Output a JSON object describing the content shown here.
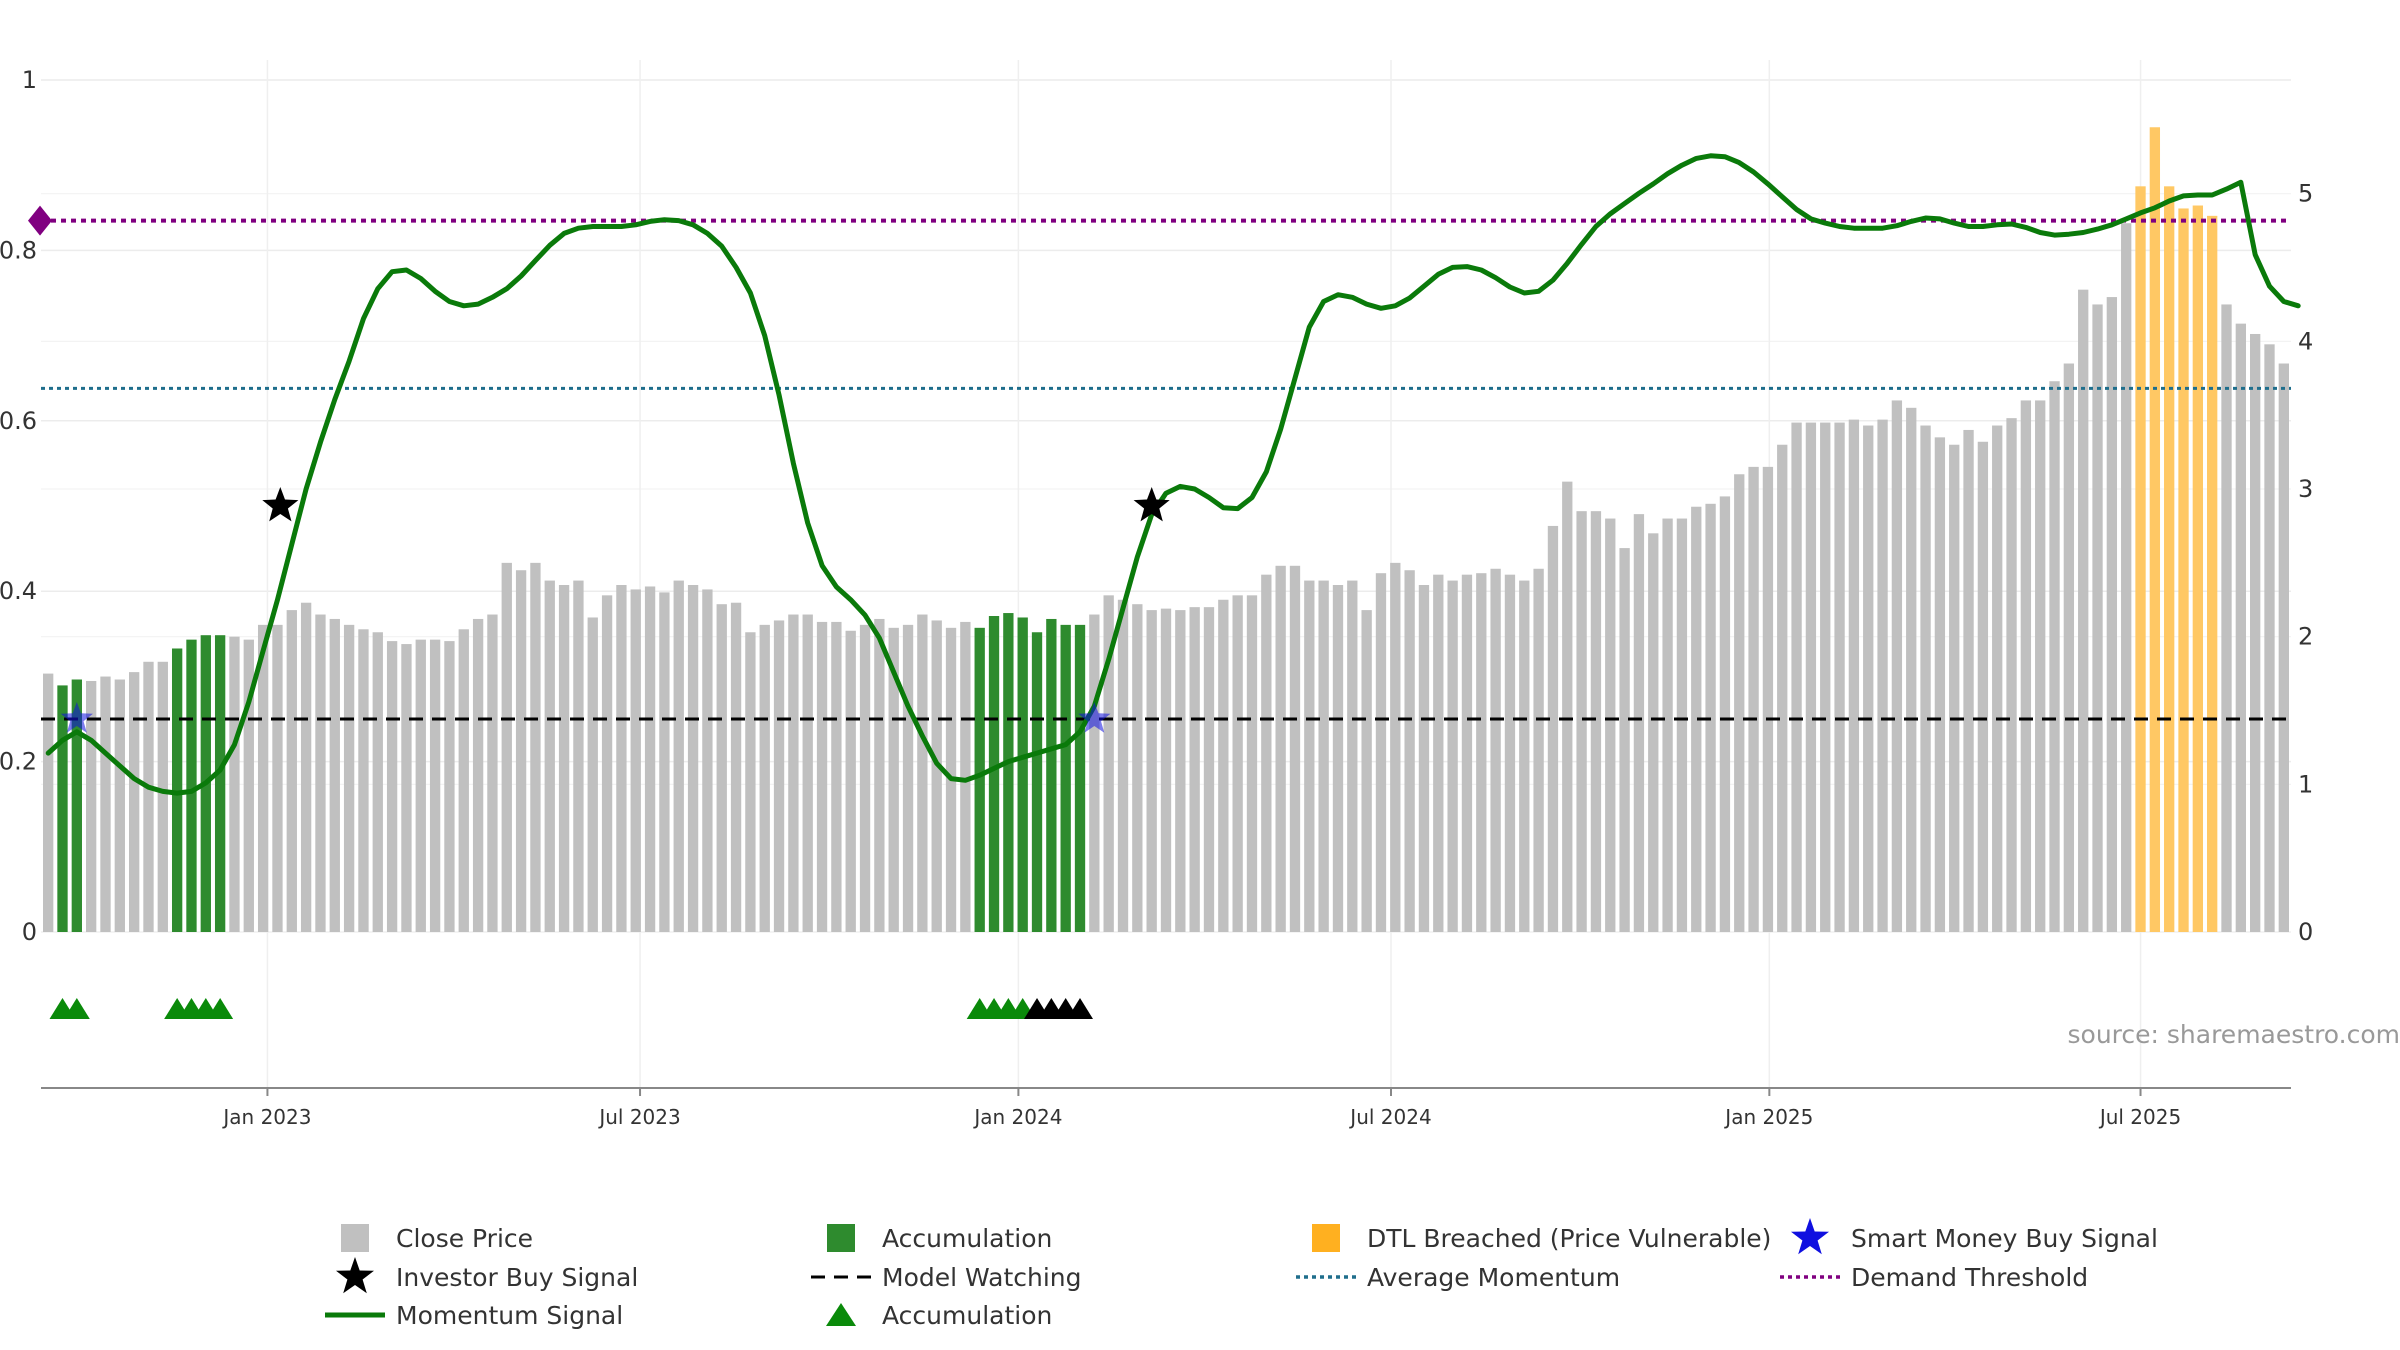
{
  "source": "source: sharemaestro.com",
  "colors": {
    "close_price": "#c0c0c0",
    "accumulation": "#2e8b2e",
    "dtl": "#ffc864",
    "momentum": "#0a7a0a",
    "model_watching": "#000000",
    "average_momentum": "#1f6e8c",
    "demand_threshold": "#800080",
    "smart_money": "#1010e0",
    "investor": "#000000"
  },
  "chart_data": {
    "type": "bar",
    "title": "",
    "x_ticks": [
      {
        "label": "Jan 2023",
        "week": 15.3
      },
      {
        "label": "Jul 2023",
        "week": 41.3
      },
      {
        "label": "Jan 2024",
        "week": 67.7
      },
      {
        "label": "Jul 2024",
        "week": 93.7
      },
      {
        "label": "Jan 2025",
        "week": 120.1
      },
      {
        "label": "Jul 2025",
        "week": 146.0
      }
    ],
    "left_axis": {
      "ylim": [
        0,
        1
      ],
      "ticks": [
        "0",
        "0.2",
        "0.4",
        "0.6",
        "0.8",
        "1"
      ],
      "values": [
        0,
        0.2,
        0.4,
        0.6,
        0.8,
        1
      ]
    },
    "right_axis": {
      "ylim": [
        0,
        5.77
      ],
      "ticks": [
        "0",
        "1",
        "2",
        "3",
        "4",
        "5"
      ],
      "values": [
        0,
        1,
        2,
        3,
        4,
        5
      ]
    },
    "close_price": [
      1.75,
      1.67,
      1.71,
      1.7,
      1.73,
      1.71,
      1.76,
      1.83,
      1.83,
      1.92,
      1.98,
      2.01,
      2.01,
      2.0,
      1.98,
      2.08,
      2.08,
      2.18,
      2.23,
      2.15,
      2.12,
      2.08,
      2.05,
      2.03,
      1.97,
      1.95,
      1.98,
      1.98,
      1.97,
      2.05,
      2.12,
      2.15,
      2.5,
      2.45,
      2.5,
      2.38,
      2.35,
      2.38,
      2.13,
      2.28,
      2.35,
      2.32,
      2.34,
      2.3,
      2.38,
      2.35,
      2.32,
      2.22,
      2.23,
      2.03,
      2.08,
      2.11,
      2.15,
      2.15,
      2.1,
      2.1,
      2.04,
      2.08,
      2.12,
      2.06,
      2.08,
      2.15,
      2.11,
      2.06,
      2.1,
      2.06,
      2.14,
      2.16,
      2.13,
      2.03,
      2.12,
      2.08,
      2.08,
      2.15,
      2.28,
      2.25,
      2.22,
      2.18,
      2.19,
      2.18,
      2.2,
      2.2,
      2.25,
      2.28,
      2.28,
      2.42,
      2.48,
      2.48,
      2.38,
      2.38,
      2.35,
      2.38,
      2.18,
      2.43,
      2.5,
      2.45,
      2.35,
      2.42,
      2.38,
      2.42,
      2.43,
      2.46,
      2.42,
      2.38,
      2.46,
      2.75,
      3.05,
      2.85,
      2.85,
      2.8,
      2.6,
      2.83,
      2.7,
      2.8,
      2.8,
      2.88,
      2.9,
      2.95,
      3.1,
      3.15,
      3.15,
      3.3,
      3.45,
      3.45,
      3.45,
      3.45,
      3.47,
      3.43,
      3.47,
      3.6,
      3.55,
      3.43,
      3.35,
      3.3,
      3.4,
      3.32,
      3.43,
      3.48,
      3.6,
      3.6,
      3.73,
      3.85,
      4.35,
      4.25,
      4.3,
      4.8,
      5.05,
      5.45,
      5.05,
      4.9,
      4.92,
      4.85,
      4.25,
      4.12,
      4.05,
      3.98,
      3.85
    ],
    "accumulation_weeks": [
      1,
      2,
      9,
      10,
      11,
      12,
      65,
      66,
      67,
      68,
      69,
      70,
      71,
      72
    ],
    "dtl_weeks": [
      146,
      147,
      148,
      149,
      150,
      151
    ],
    "momentum_signal": [
      [
        0,
        0.21
      ],
      [
        1,
        0.225
      ],
      [
        2,
        0.235
      ],
      [
        3,
        0.225
      ],
      [
        4,
        0.21
      ],
      [
        5,
        0.195
      ],
      [
        6,
        0.18
      ],
      [
        7,
        0.17
      ],
      [
        8,
        0.165
      ],
      [
        9,
        0.163
      ],
      [
        10,
        0.165
      ],
      [
        11,
        0.175
      ],
      [
        12,
        0.19
      ],
      [
        13,
        0.22
      ],
      [
        14,
        0.27
      ],
      [
        15,
        0.33
      ],
      [
        16,
        0.39
      ],
      [
        17,
        0.455
      ],
      [
        18,
        0.52
      ],
      [
        19,
        0.575
      ],
      [
        20,
        0.625
      ],
      [
        21,
        0.67
      ],
      [
        22,
        0.72
      ],
      [
        23,
        0.755
      ],
      [
        24,
        0.775
      ],
      [
        25,
        0.777
      ],
      [
        26,
        0.767
      ],
      [
        27,
        0.752
      ],
      [
        28,
        0.74
      ],
      [
        29,
        0.735
      ],
      [
        30,
        0.737
      ],
      [
        31,
        0.745
      ],
      [
        32,
        0.755
      ],
      [
        33,
        0.77
      ],
      [
        34,
        0.788
      ],
      [
        35,
        0.806
      ],
      [
        36,
        0.82
      ],
      [
        37,
        0.826
      ],
      [
        38,
        0.828
      ],
      [
        39,
        0.828
      ],
      [
        40,
        0.828
      ],
      [
        41,
        0.83
      ],
      [
        42,
        0.834
      ],
      [
        43,
        0.836
      ],
      [
        44,
        0.835
      ],
      [
        45,
        0.83
      ],
      [
        46,
        0.82
      ],
      [
        47,
        0.805
      ],
      [
        48,
        0.78
      ],
      [
        49,
        0.75
      ],
      [
        50,
        0.7
      ],
      [
        51,
        0.63
      ],
      [
        52,
        0.55
      ],
      [
        53,
        0.48
      ],
      [
        54,
        0.43
      ],
      [
        55,
        0.405
      ],
      [
        56,
        0.39
      ],
      [
        57,
        0.372
      ],
      [
        58,
        0.345
      ],
      [
        59,
        0.305
      ],
      [
        60,
        0.265
      ],
      [
        61,
        0.23
      ],
      [
        62,
        0.198
      ],
      [
        63,
        0.18
      ],
      [
        64,
        0.178
      ],
      [
        65,
        0.184
      ],
      [
        66,
        0.192
      ],
      [
        67,
        0.2
      ],
      [
        68,
        0.205
      ],
      [
        69,
        0.21
      ],
      [
        70,
        0.215
      ],
      [
        71,
        0.22
      ],
      [
        72,
        0.235
      ],
      [
        73,
        0.265
      ],
      [
        74,
        0.32
      ],
      [
        75,
        0.38
      ],
      [
        76,
        0.44
      ],
      [
        77,
        0.49
      ],
      [
        78,
        0.515
      ],
      [
        79,
        0.523
      ],
      [
        80,
        0.52
      ],
      [
        81,
        0.51
      ],
      [
        82,
        0.498
      ],
      [
        83,
        0.497
      ],
      [
        84,
        0.51
      ],
      [
        85,
        0.54
      ],
      [
        86,
        0.59
      ],
      [
        87,
        0.65
      ],
      [
        88,
        0.71
      ],
      [
        89,
        0.74
      ],
      [
        90,
        0.748
      ],
      [
        91,
        0.745
      ],
      [
        92,
        0.737
      ],
      [
        93,
        0.732
      ],
      [
        94,
        0.735
      ],
      [
        95,
        0.744
      ],
      [
        96,
        0.758
      ],
      [
        97,
        0.772
      ],
      [
        98,
        0.78
      ],
      [
        99,
        0.781
      ],
      [
        100,
        0.777
      ],
      [
        101,
        0.768
      ],
      [
        102,
        0.757
      ],
      [
        103,
        0.75
      ],
      [
        104,
        0.752
      ],
      [
        105,
        0.765
      ],
      [
        106,
        0.785
      ],
      [
        107,
        0.807
      ],
      [
        108,
        0.828
      ],
      [
        109,
        0.843
      ],
      [
        110,
        0.855
      ],
      [
        111,
        0.867
      ],
      [
        112,
        0.878
      ],
      [
        113,
        0.89
      ],
      [
        114,
        0.9
      ],
      [
        115,
        0.908
      ],
      [
        116,
        0.911
      ],
      [
        117,
        0.91
      ],
      [
        118,
        0.903
      ],
      [
        119,
        0.892
      ],
      [
        120,
        0.878
      ],
      [
        121,
        0.863
      ],
      [
        122,
        0.848
      ],
      [
        123,
        0.837
      ],
      [
        124,
        0.832
      ],
      [
        125,
        0.828
      ],
      [
        126,
        0.826
      ],
      [
        127,
        0.826
      ],
      [
        128,
        0.826
      ],
      [
        129,
        0.829
      ],
      [
        130,
        0.834
      ],
      [
        131,
        0.838
      ],
      [
        132,
        0.837
      ],
      [
        133,
        0.832
      ],
      [
        134,
        0.828
      ],
      [
        135,
        0.828
      ],
      [
        136,
        0.83
      ],
      [
        137,
        0.831
      ],
      [
        138,
        0.827
      ],
      [
        139,
        0.821
      ],
      [
        140,
        0.818
      ],
      [
        141,
        0.819
      ],
      [
        142,
        0.821
      ],
      [
        143,
        0.825
      ],
      [
        144,
        0.83
      ],
      [
        145,
        0.837
      ],
      [
        146,
        0.844
      ],
      [
        147,
        0.85
      ],
      [
        148,
        0.858
      ],
      [
        149,
        0.864
      ],
      [
        150,
        0.865
      ],
      [
        151,
        0.865
      ],
      [
        152,
        0.872
      ],
      [
        153,
        0.88
      ],
      [
        154,
        0.795
      ],
      [
        155,
        0.758
      ],
      [
        156,
        0.74
      ],
      [
        157,
        0.735
      ]
    ],
    "model_watching_level": 0.25,
    "average_momentum_level": 0.638,
    "demand_threshold_level": 0.835,
    "investor_buy_signals": [
      [
        16.2,
        0.5
      ],
      [
        77,
        0.5
      ]
    ],
    "smart_money_buy_signals": [
      [
        2,
        0.25
      ],
      [
        73,
        0.25
      ]
    ],
    "triangle_markers": [
      {
        "week": 1,
        "color": "green"
      },
      {
        "week": 2,
        "color": "green"
      },
      {
        "week": 9,
        "color": "green"
      },
      {
        "week": 10,
        "color": "green"
      },
      {
        "week": 11,
        "color": "green"
      },
      {
        "week": 12,
        "color": "green"
      },
      {
        "week": 65,
        "color": "green"
      },
      {
        "week": 66,
        "color": "green"
      },
      {
        "week": 67,
        "color": "green"
      },
      {
        "week": 68,
        "color": "green"
      },
      {
        "week": 69,
        "color": "black"
      },
      {
        "week": 70,
        "color": "black"
      },
      {
        "week": 71,
        "color": "black"
      },
      {
        "week": 72,
        "color": "black"
      }
    ],
    "legend": [
      {
        "label": "Close Price",
        "symbol": "square",
        "color": "#c0c0c0"
      },
      {
        "label": "Accumulation",
        "symbol": "square",
        "color": "#2e8b2e"
      },
      {
        "label": "DTL Breached (Price Vulnerable)",
        "symbol": "square",
        "color": "#ffb020"
      },
      {
        "label": "Smart Money Buy Signal",
        "symbol": "star",
        "color": "#1010e0"
      },
      {
        "label": "Investor Buy Signal",
        "symbol": "star",
        "color": "#000000"
      },
      {
        "label": "Model Watching",
        "symbol": "dash",
        "color": "#000000"
      },
      {
        "label": "Average Momentum",
        "symbol": "dot",
        "color": "#1f6e8c"
      },
      {
        "label": "Demand Threshold",
        "symbol": "dot",
        "color": "#800080"
      },
      {
        "label": "Momentum Signal",
        "symbol": "line",
        "color": "#0a7a0a"
      },
      {
        "label": "Accumulation",
        "symbol": "triangle",
        "color": "#0a8a0a"
      }
    ]
  }
}
